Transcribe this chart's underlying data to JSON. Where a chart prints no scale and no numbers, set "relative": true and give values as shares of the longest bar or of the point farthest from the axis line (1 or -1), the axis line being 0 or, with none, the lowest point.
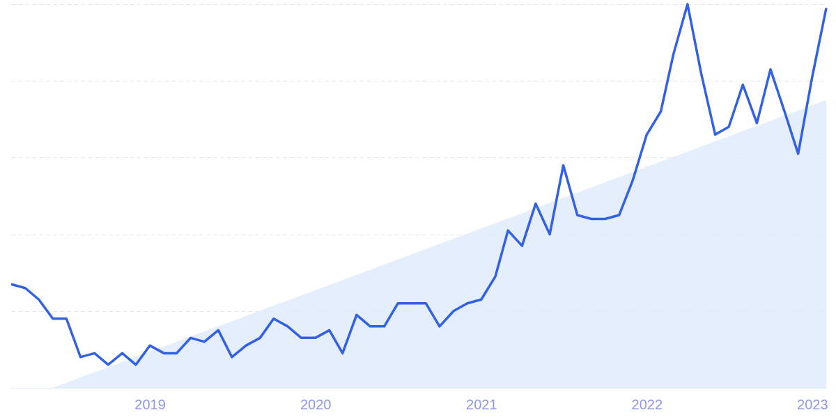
{
  "chart_data": {
    "type": "line",
    "relative": true,
    "grid": "y",
    "x": [
      "2018-03",
      "2018-04",
      "2018-05",
      "2018-06",
      "2018-07",
      "2018-08",
      "2018-09",
      "2018-10",
      "2018-11",
      "2018-12",
      "2019-01",
      "2019-02",
      "2019-03",
      "2019-04",
      "2019-05",
      "2019-06",
      "2019-07",
      "2019-08",
      "2019-09",
      "2019-10",
      "2019-11",
      "2019-12",
      "2020-01",
      "2020-02",
      "2020-03",
      "2020-04",
      "2020-05",
      "2020-06",
      "2020-07",
      "2020-08",
      "2020-09",
      "2020-10",
      "2020-11",
      "2020-12",
      "2021-01",
      "2021-02",
      "2021-03",
      "2021-04",
      "2021-05",
      "2021-06",
      "2021-07",
      "2021-08",
      "2021-09",
      "2021-10",
      "2021-11",
      "2021-12",
      "2022-01",
      "2022-02",
      "2022-03",
      "2022-04",
      "2022-05",
      "2022-06",
      "2022-07",
      "2022-08",
      "2022-09",
      "2022-10",
      "2022-11",
      "2022-12",
      "2023-01",
      "2023-02"
    ],
    "xlim": [
      "2018-03",
      "2023-02"
    ],
    "xticks": [
      "2019",
      "2020",
      "2021",
      "2022",
      "2023"
    ],
    "series": [
      {
        "type": "area",
        "x": [
          "2018-06",
          "2023-02"
        ],
        "values": [
          0,
          0.75
        ],
        "color": "#dfeafb"
      },
      {
        "color": "#3361e6",
        "values": [
          0.27,
          0.26,
          0.23,
          0.18,
          0.18,
          0.08,
          0.09,
          0.06,
          0.09,
          0.06,
          0.11,
          0.09,
          0.09,
          0.13,
          0.12,
          0.15,
          0.08,
          0.11,
          0.13,
          0.18,
          0.16,
          0.13,
          0.13,
          0.15,
          0.09,
          0.19,
          0.16,
          0.16,
          0.22,
          0.22,
          0.22,
          0.16,
          0.2,
          0.22,
          0.23,
          0.29,
          0.41,
          0.37,
          0.48,
          0.4,
          0.58,
          0.45,
          0.44,
          0.44,
          0.45,
          0.54,
          0.66,
          0.72,
          0.87,
          1.0,
          0.82,
          0.66,
          0.68,
          0.79,
          0.69,
          0.83,
          0.72,
          0.61,
          0.81,
          0.99
        ]
      }
    ]
  }
}
